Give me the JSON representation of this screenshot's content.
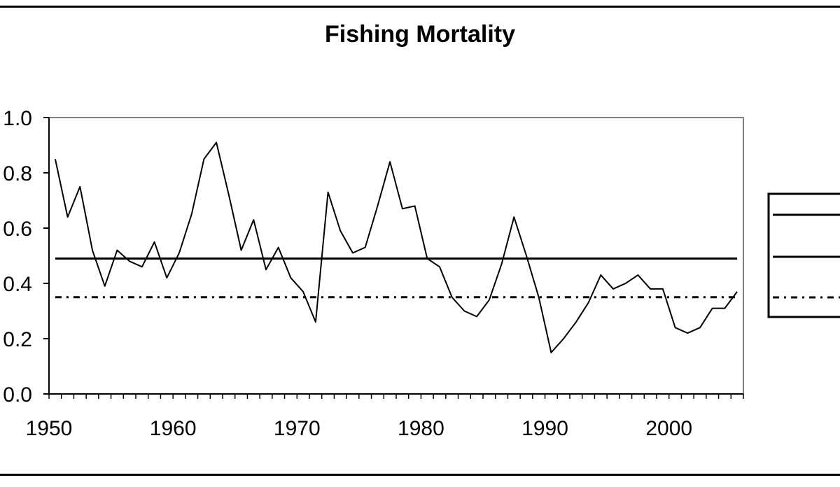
{
  "chart_data": {
    "type": "line",
    "title": "Fishing Mortality",
    "xlabel": "",
    "ylabel": "",
    "xlim": [
      1950,
      2006
    ],
    "ylim": [
      0.0,
      1.0
    ],
    "x_ticks": [
      1950,
      1960,
      1970,
      1980,
      1990,
      2000
    ],
    "y_ticks": [
      "0.0",
      "0.2",
      "0.4",
      "0.6",
      "0.8",
      "1.0"
    ],
    "grid": false,
    "legend": "right",
    "series": [
      {
        "style": "solid",
        "color": "#000000",
        "x": [
          1950.5,
          1951.5,
          1952.5,
          1953.5,
          1954.5,
          1955.5,
          1956.5,
          1957.5,
          1958.5,
          1959.5,
          1960.5,
          1961.5,
          1962.5,
          1963.5,
          1964.5,
          1965.5,
          1966.5,
          1967.5,
          1968.5,
          1969.5,
          1970.5,
          1971.5,
          1972.5,
          1973.5,
          1974.5,
          1975.5,
          1976.5,
          1977.5,
          1978.5,
          1979.5,
          1980.5,
          1981.5,
          1982.5,
          1983.5,
          1984.5,
          1985.5,
          1986.5,
          1987.5,
          1988.5,
          1989.5,
          1990.5,
          1991.5,
          1992.5,
          1993.5,
          1994.5,
          1995.5,
          1996.5,
          1997.5,
          1998.5,
          1999.5,
          2000.5,
          2001.5,
          2002.5,
          2003.5,
          2004.5,
          2005.5
        ],
        "values": [
          0.85,
          0.64,
          0.75,
          0.52,
          0.39,
          0.52,
          0.48,
          0.46,
          0.55,
          0.42,
          0.51,
          0.65,
          0.85,
          0.91,
          0.72,
          0.52,
          0.63,
          0.45,
          0.53,
          0.42,
          0.37,
          0.26,
          0.73,
          0.59,
          0.51,
          0.53,
          0.68,
          0.84,
          0.67,
          0.68,
          0.49,
          0.46,
          0.35,
          0.3,
          0.28,
          0.34,
          0.47,
          0.64,
          0.5,
          0.35,
          0.15,
          0.2,
          0.26,
          0.33,
          0.43,
          0.38,
          0.4,
          0.43,
          0.38,
          0.38,
          0.24,
          0.22,
          0.24,
          0.31,
          0.31,
          0.37
        ]
      },
      {
        "style": "solid",
        "color": "#000000",
        "x": [
          1950.5,
          2005.5
        ],
        "values": [
          0.49,
          0.49
        ]
      },
      {
        "style": "dash-dot",
        "color": "#000000",
        "x": [
          1950.5,
          2005.5
        ],
        "values": [
          0.35,
          0.35
        ]
      }
    ]
  }
}
